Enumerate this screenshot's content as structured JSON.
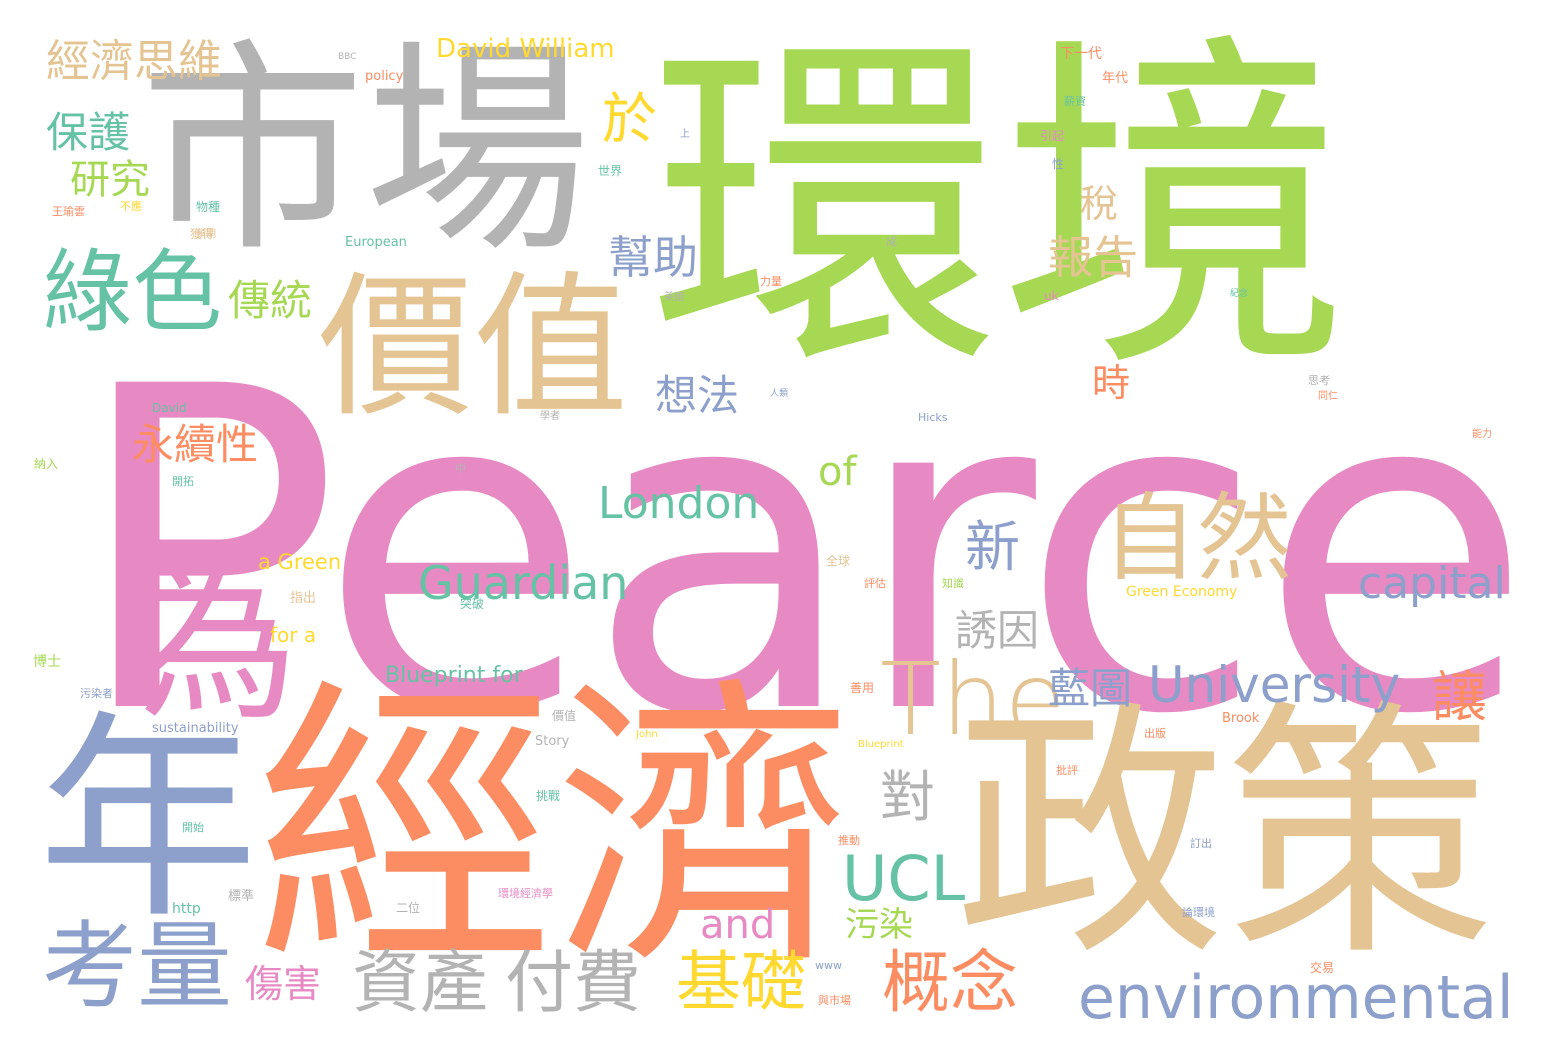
{
  "colors": {
    "pink": "#e78ac3",
    "green": "#a6d854",
    "gray": "#b3b3b3",
    "tan": "#e5c494",
    "orange": "#fc8d62",
    "blue": "#8da0cb",
    "teal": "#66c2a5",
    "yellow": "#ffd92f"
  },
  "words": {
    "pearce": "Pearce",
    "huanjing": "環境",
    "shichang": "市場",
    "jingji": "經濟",
    "zhengce": "政策",
    "jiazhi": "價值",
    "nian": "年",
    "wei": "為",
    "lvse": "綠色",
    "ziran": "自然",
    "kaoliang": "考量",
    "the": "The",
    "environmental": "environmental",
    "zichan": "資產",
    "fufei": "付費",
    "jichu": "基礎",
    "gainian": "概念",
    "ucl": "UCL",
    "university": "University",
    "guardian": "Guardian",
    "london": "London",
    "capital": "capital",
    "jingjisiwei": "經濟思維",
    "baohu": "保護",
    "yanjiu": "研究",
    "chuantong": "傳統",
    "yongxuxing": "永續性",
    "bangzhu": "幫助",
    "xiangfa": "想法",
    "baogao": "報告",
    "xin": "新",
    "of": "of",
    "and": "and",
    "youyin": "誘因",
    "lanto": "藍圖",
    "dui": "對",
    "rang": "讓",
    "wuran": "污染",
    "shanghai": "傷害",
    "shui": "稅",
    "shi": "時",
    "yu": "於",
    "david_william": "David William",
    "blueprint_for": "Blueprint for",
    "a_green": "a Green",
    "for_a": "for a",
    "green_economy": "Green Economy",
    "policy": "policy",
    "european": "European",
    "sustainability": "sustainability",
    "story": "Story",
    "http": "http",
    "david": "David",
    "hicks": "Hicks",
    "john": "John",
    "brook": "Brook",
    "uk": "uk",
    "www": "www",
    "bbc": "BBC",
    "blueprint": "Blueprint",
    "xiayidai": "下一代",
    "niandai": "年代",
    "yinqi": "引起",
    "xing": "性",
    "xinzi": "薪資",
    "shijie": "世界",
    "wuzhong": "物種",
    "buzai": "不應",
    "huode": "獲得",
    "chengshi": "成",
    "meiguo": "美國",
    "liliang": "力量",
    "zhichu": "指出",
    "tupo": "突破",
    "bosi": "博士",
    "quanqiu": "全球",
    "pinggu": "評估",
    "zhishi": "知識",
    "shiyong": "善用",
    "jiaoyi": "交易",
    "chuban": "出版",
    "piping": "批評",
    "dingchu": "訂出",
    "naru": "納入",
    "jinian": "紀念",
    "tiaozhan": "挑戰",
    "kaishi": "開始",
    "biaozhun": "標準",
    "erwei": "二位",
    "wuranzhe": "污染者",
    "tuidong": "推動",
    "shijia": "價值",
    "zhong": "中",
    "xuezhe": "學者",
    "siwei": "思考",
    "tongren": "同仁",
    "renlei": "人類",
    "nengli": "能力",
    "shangshi": "上",
    "huanjingjingji": "環境經濟學",
    "bushichang": "與市場",
    "lunhuanjing": "論環境",
    "yuqi": "預期",
    "kaituo": "開拓",
    "wang": "王瑜雲"
  }
}
